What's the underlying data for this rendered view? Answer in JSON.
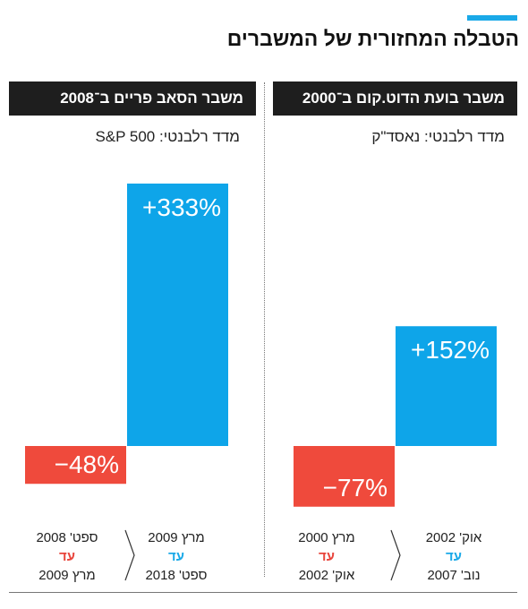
{
  "title": "הטבלה המחזורית של המשברים",
  "colors": {
    "positive": "#0ea5e9",
    "negative": "#ef4a3c",
    "accent": "#1aa9e8",
    "header_bg": "#1e1e1e"
  },
  "panels": [
    {
      "header": "משבר בועת הדוט.קום ב־2000",
      "subtitle": "מדד רלבנטי: נאסד\"ק",
      "decline": {
        "label": "−77%",
        "from": "מרץ 2000",
        "until": "עד",
        "to": "אוק' 2002"
      },
      "recovery": {
        "label": "+152%",
        "from": "אוק' 2002",
        "until": "עד",
        "to": "נוב' 2007"
      }
    },
    {
      "header": "משבר הסאב פריים ב־2008",
      "subtitle": "מדד רלבנטי: S&P 500",
      "decline": {
        "label": "−48%",
        "from": "ספט' 2008",
        "until": "עד",
        "to": "מרץ 2009"
      },
      "recovery": {
        "label": "+333%",
        "from": "מרץ 2009",
        "until": "עד",
        "to": "ספט' 2018"
      }
    }
  ],
  "chart_data": [
    {
      "type": "bar",
      "categories": [
        "מרץ 2000 – אוק' 2002",
        "אוק' 2002 – נוב' 2007"
      ],
      "values": [
        -77,
        152
      ],
      "ylabel": "",
      "xlabel": ""
    },
    {
      "type": "bar",
      "categories": [
        "ספט' 2008 – מרץ 2009",
        "מרץ 2009 – ספט' 2018"
      ],
      "values": [
        -48,
        333
      ],
      "ylabel": "",
      "xlabel": ""
    }
  ]
}
